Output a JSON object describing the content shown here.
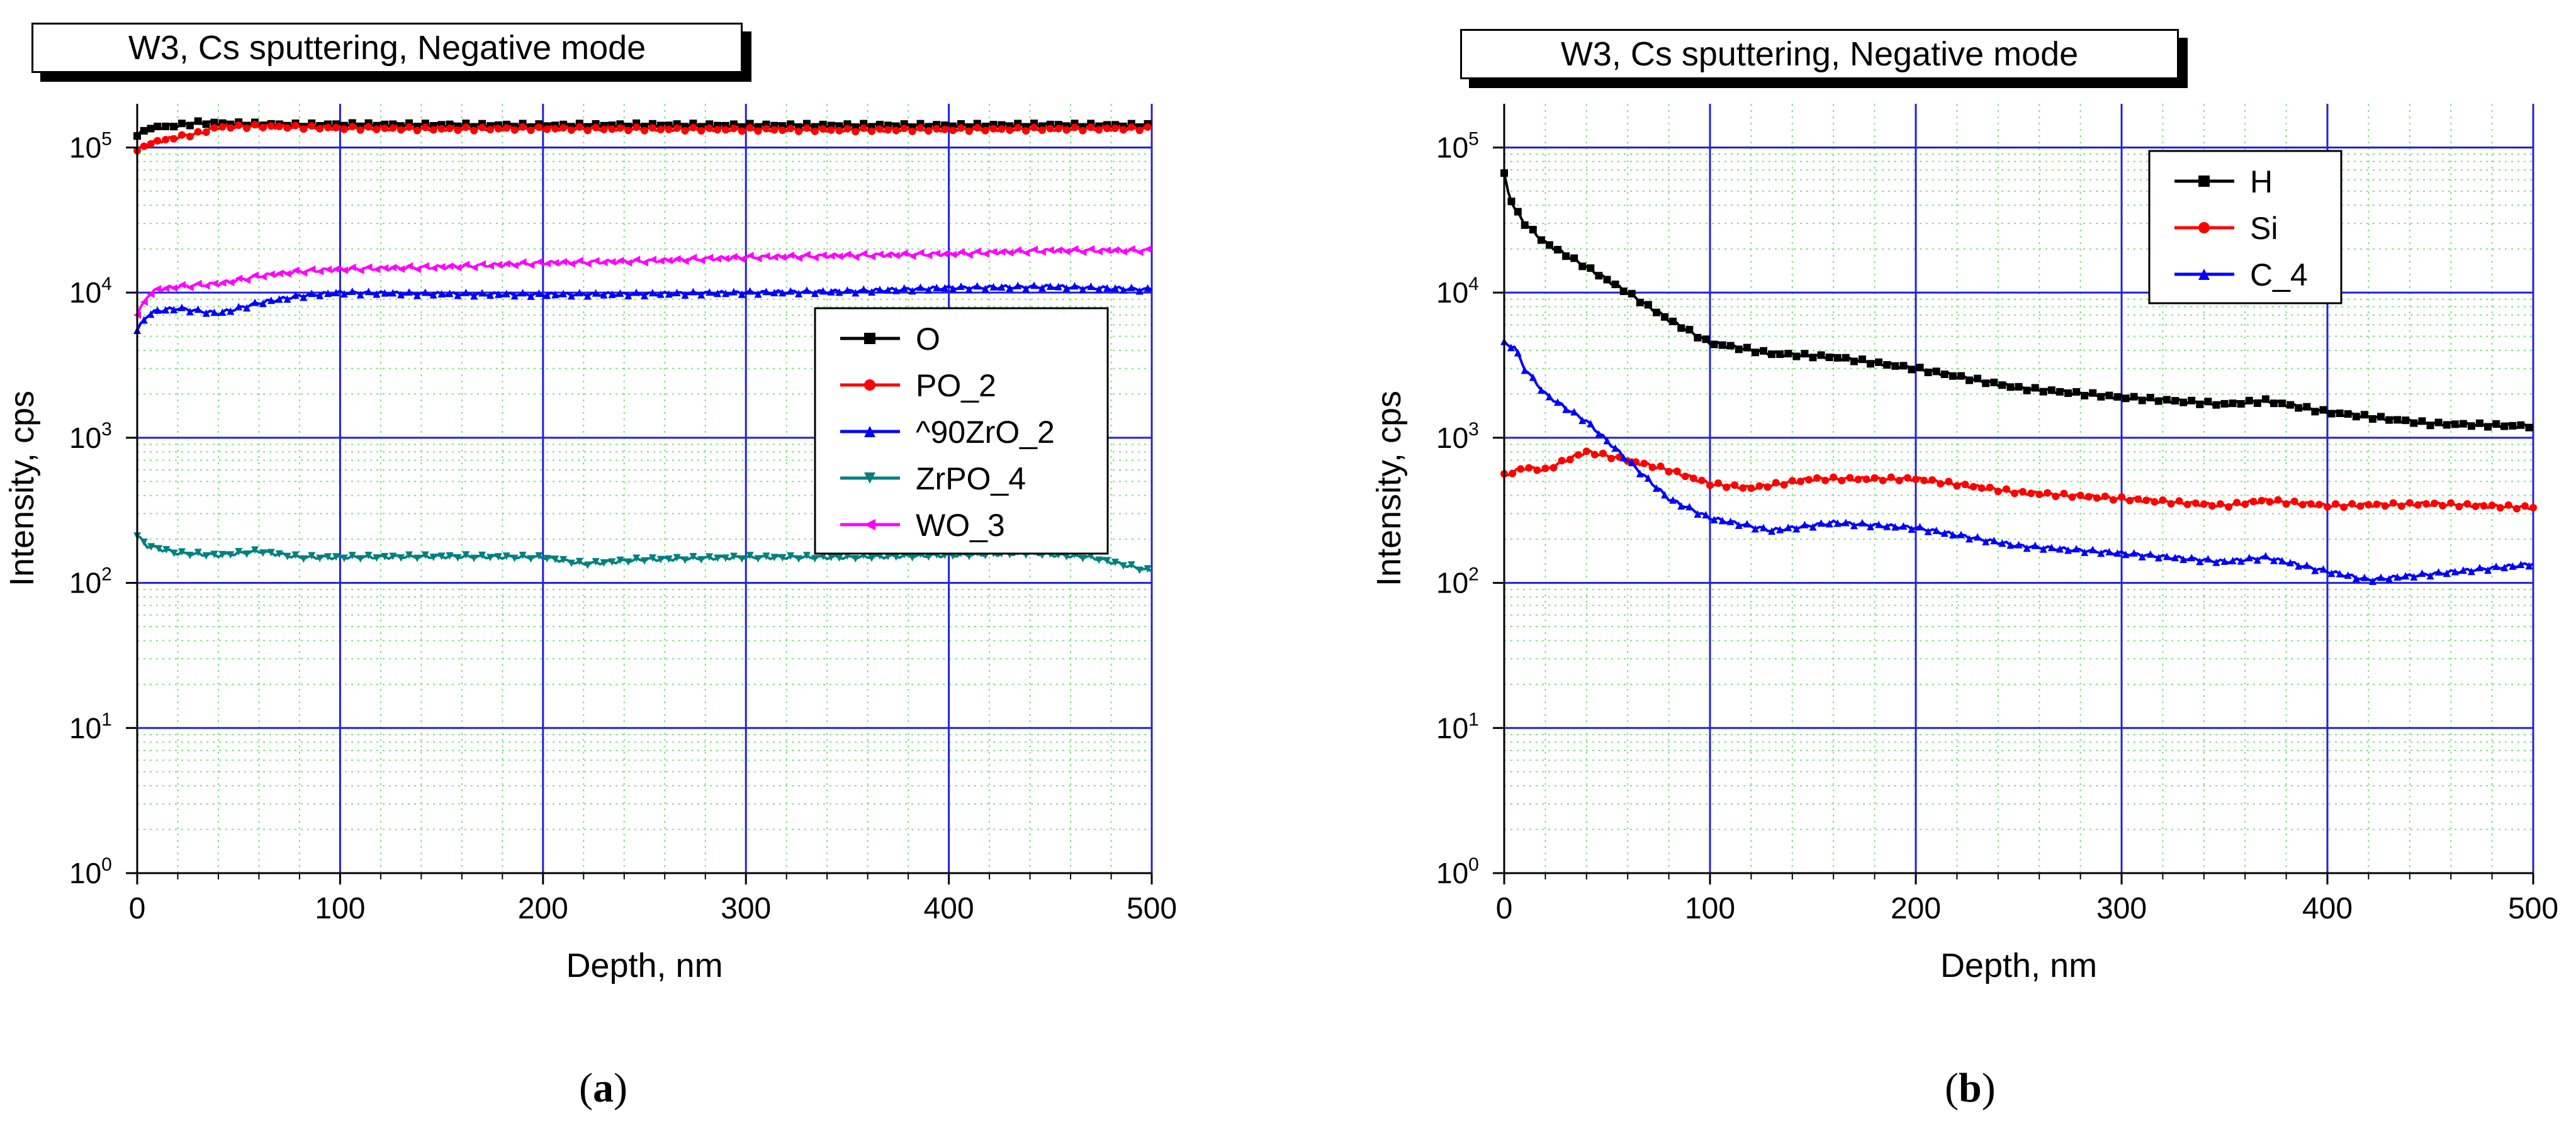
{
  "chart_data": [
    {
      "type": "line",
      "panel_label": "a",
      "title": "W3, Cs sputtering, Negative mode",
      "xlabel": "Depth, nm",
      "ylabel": "Intensity, cps",
      "xlim": [
        0,
        500
      ],
      "ylim": [
        1,
        200000
      ],
      "yscale": "log",
      "xticks": [
        "0",
        "100",
        "200",
        "300",
        "400",
        "500"
      ],
      "yticks": [
        {
          "base": "10",
          "exp": "0"
        },
        {
          "base": "10",
          "exp": "1"
        },
        {
          "base": "10",
          "exp": "2"
        },
        {
          "base": "10",
          "exp": "3"
        },
        {
          "base": "10",
          "exp": "4"
        },
        {
          "base": "10",
          "exp": "5"
        }
      ],
      "grid": true,
      "legend_position": "center-right",
      "series": [
        {
          "name": "O",
          "color": "#000000",
          "marker": "square",
          "x": [
            0,
            5,
            10,
            20,
            30,
            40,
            60,
            80,
            100,
            150,
            200,
            250,
            300,
            350,
            400,
            450,
            500
          ],
          "y": [
            120000,
            135000,
            138000,
            142000,
            148000,
            147000,
            145000,
            143000,
            144000,
            143000,
            142000,
            143000,
            142000,
            142000,
            142000,
            143000,
            142000
          ]
        },
        {
          "name": "PO_2",
          "color": "#ff0000",
          "marker": "circle",
          "x": [
            0,
            5,
            10,
            20,
            30,
            40,
            60,
            80,
            100,
            150,
            200,
            250,
            300,
            350,
            400,
            450,
            500
          ],
          "y": [
            95000,
            105000,
            110000,
            118000,
            125000,
            138000,
            140000,
            138000,
            136000,
            134000,
            135000,
            134000,
            133000,
            132000,
            133000,
            134000,
            135000
          ]
        },
        {
          "name": "^90ZrO_2",
          "color": "#0000ff",
          "marker": "triangle-up",
          "x": [
            0,
            5,
            10,
            20,
            40,
            60,
            80,
            100,
            150,
            200,
            250,
            300,
            350,
            400,
            450,
            500
          ],
          "y": [
            5500,
            7000,
            7500,
            7800,
            7200,
            8500,
            9500,
            10000,
            9800,
            9700,
            9800,
            10000,
            10200,
            10800,
            11000,
            10500
          ]
        },
        {
          "name": "ZrPO_4",
          "color": "#008080",
          "marker": "triangle-down",
          "x": [
            0,
            5,
            20,
            40,
            60,
            80,
            100,
            150,
            200,
            220,
            250,
            300,
            350,
            400,
            440,
            470,
            500
          ],
          "y": [
            210,
            180,
            160,
            155,
            165,
            150,
            150,
            152,
            150,
            135,
            145,
            150,
            150,
            155,
            160,
            150,
            120
          ]
        },
        {
          "name": "WO_3",
          "color": "#ff00ff",
          "marker": "triangle-left",
          "x": [
            0,
            5,
            10,
            20,
            40,
            60,
            80,
            100,
            150,
            200,
            250,
            300,
            350,
            400,
            450,
            500
          ],
          "y": [
            7000,
            9500,
            10500,
            11000,
            11500,
            13000,
            14000,
            14500,
            15000,
            16000,
            16500,
            17500,
            18000,
            18500,
            19500,
            19500
          ]
        }
      ]
    },
    {
      "type": "line",
      "panel_label": "b",
      "title": "W3, Cs sputtering, Negative mode",
      "xlabel": "Depth, nm",
      "ylabel": "Intensity, cps",
      "xlim": [
        0,
        500
      ],
      "ylim": [
        1,
        200000
      ],
      "yscale": "log",
      "xticks": [
        "0",
        "100",
        "200",
        "300",
        "400",
        "500"
      ],
      "yticks": [
        {
          "base": "10",
          "exp": "0"
        },
        {
          "base": "10",
          "exp": "1"
        },
        {
          "base": "10",
          "exp": "2"
        },
        {
          "base": "10",
          "exp": "3"
        },
        {
          "base": "10",
          "exp": "4"
        },
        {
          "base": "10",
          "exp": "5"
        }
      ],
      "grid": true,
      "legend_position": "top-center",
      "series": [
        {
          "name": "H",
          "color": "#000000",
          "marker": "square",
          "x": [
            0,
            2,
            5,
            10,
            20,
            40,
            60,
            80,
            100,
            130,
            160,
            200,
            250,
            300,
            350,
            370,
            400,
            450,
            500
          ],
          "y": [
            65000,
            50000,
            38000,
            30000,
            22000,
            15000,
            10000,
            6500,
            4500,
            3800,
            3600,
            3000,
            2200,
            1900,
            1700,
            1800,
            1500,
            1250,
            1200
          ]
        },
        {
          "name": "Si",
          "color": "#ff0000",
          "marker": "circle",
          "x": [
            0,
            10,
            20,
            30,
            40,
            50,
            60,
            80,
            100,
            120,
            150,
            200,
            250,
            300,
            350,
            370,
            400,
            450,
            500
          ],
          "y": [
            550,
            620,
            600,
            700,
            800,
            750,
            700,
            600,
            480,
            450,
            520,
            520,
            420,
            380,
            340,
            370,
            340,
            350,
            330
          ]
        },
        {
          "name": "C_4",
          "color": "#0000ff",
          "marker": "triangle-up",
          "x": [
            0,
            5,
            10,
            20,
            30,
            40,
            60,
            80,
            100,
            130,
            160,
            200,
            250,
            300,
            350,
            370,
            400,
            420,
            450,
            500
          ],
          "y": [
            4500,
            4200,
            3000,
            2000,
            1600,
            1300,
            700,
            380,
            280,
            230,
            260,
            240,
            180,
            160,
            140,
            150,
            120,
            105,
            115,
            135
          ]
        }
      ]
    }
  ]
}
